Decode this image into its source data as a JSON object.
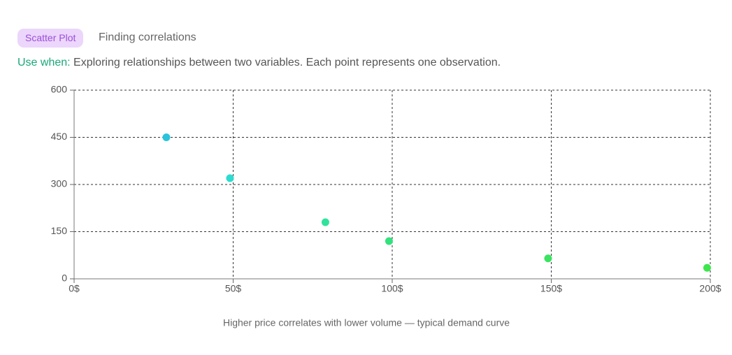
{
  "badge": "Scatter Plot",
  "heading": "Finding correlations",
  "use_when": {
    "label": "Use when:",
    "text": "Exploring relationships between two variables. Each point represents one observation."
  },
  "chart_data": {
    "type": "scatter",
    "caption": "Higher price correlates with lower volume — typical demand curve",
    "x": [
      29,
      49,
      79,
      99,
      149,
      199
    ],
    "values": [
      450,
      320,
      180,
      120,
      65,
      35
    ],
    "colors": [
      "#29c4db",
      "#2ddcd0",
      "#31e39a",
      "#33e27c",
      "#3ae360",
      "#3ee64e"
    ],
    "xlim": [
      0,
      200
    ],
    "xticks": [
      {
        "value": 0,
        "label": "0$"
      },
      {
        "value": 50,
        "label": "50$"
      },
      {
        "value": 100,
        "label": "100$"
      },
      {
        "value": 150,
        "label": "150$"
      },
      {
        "value": 200,
        "label": "200$"
      }
    ],
    "ylim": [
      0,
      600
    ],
    "yticks": [
      0,
      150,
      300,
      450,
      600
    ],
    "grid": true
  }
}
